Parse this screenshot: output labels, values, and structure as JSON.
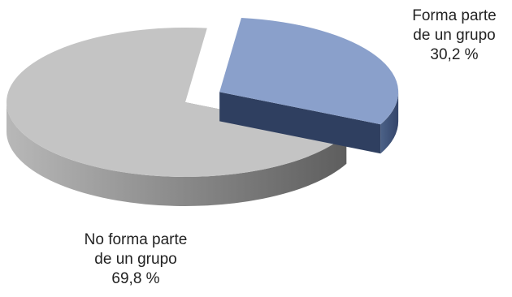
{
  "chart_data": {
    "type": "pie",
    "title": "",
    "slices": [
      {
        "label_line1": "Forma parte",
        "label_line2": "de un grupo",
        "value_text": "30,2 %",
        "value": 30.2,
        "color": "#8aa0cb",
        "side_color": "#3e5274",
        "exploded": true
      },
      {
        "label_line1": "No forma parte",
        "label_line2": "de un grupo",
        "value_text": "69,8 %",
        "value": 69.8,
        "color": "#c4c4c4",
        "side_color": "#8d8d8d",
        "exploded": false
      }
    ],
    "legend": "none",
    "style": "3d-exploded"
  }
}
